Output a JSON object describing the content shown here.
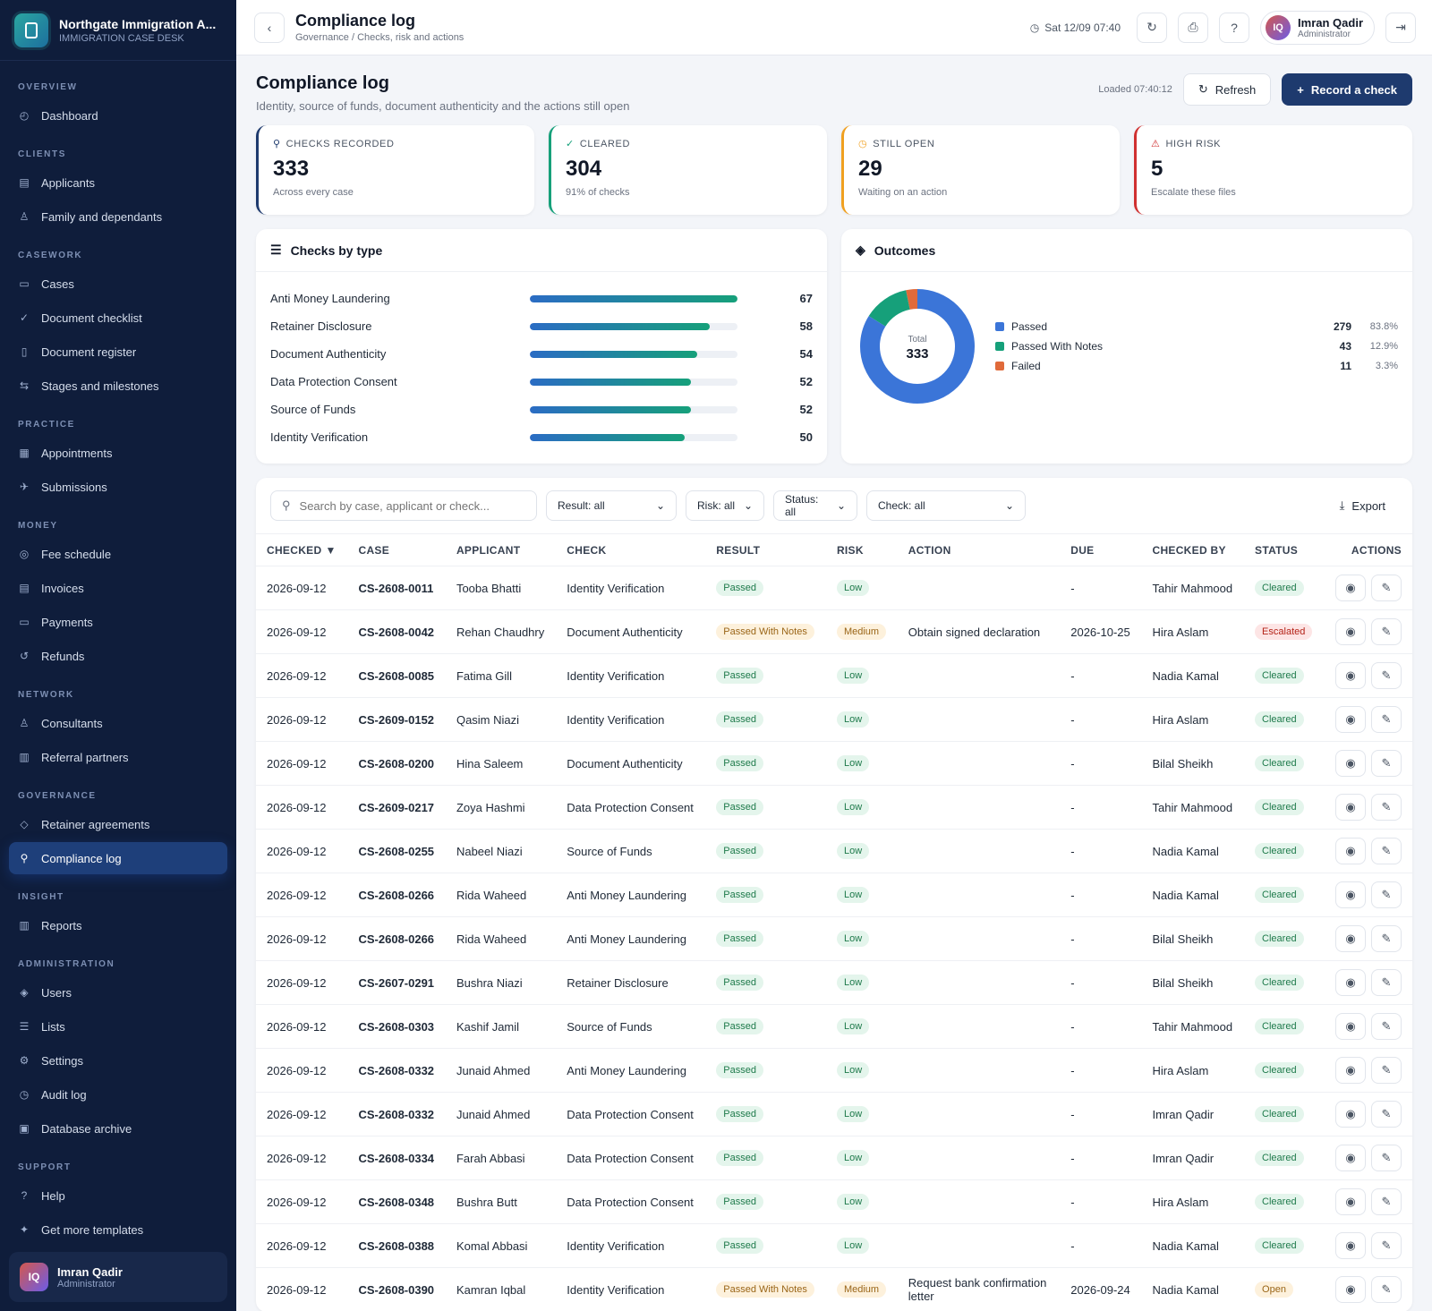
{
  "brand": {
    "title": "Northgate Immigration A...",
    "subtitle": "IMMIGRATION CASE DESK"
  },
  "nav": [
    {
      "section": "OVERVIEW",
      "items": [
        {
          "label": "Dashboard",
          "icon": "gauge-icon",
          "glyph": "◴"
        }
      ]
    },
    {
      "section": "CLIENTS",
      "items": [
        {
          "label": "Applicants",
          "icon": "id-card-icon",
          "glyph": "▤"
        },
        {
          "label": "Family and dependants",
          "icon": "user-icon",
          "glyph": "♙"
        }
      ]
    },
    {
      "section": "CASEWORK",
      "items": [
        {
          "label": "Cases",
          "icon": "briefcase-icon",
          "glyph": "▭"
        },
        {
          "label": "Document checklist",
          "icon": "check-icon",
          "glyph": "✓"
        },
        {
          "label": "Document register",
          "icon": "document-icon",
          "glyph": "▯"
        },
        {
          "label": "Stages and milestones",
          "icon": "milestone-icon",
          "glyph": "⇆"
        }
      ]
    },
    {
      "section": "PRACTICE",
      "items": [
        {
          "label": "Appointments",
          "icon": "calendar-icon",
          "glyph": "▦"
        },
        {
          "label": "Submissions",
          "icon": "plane-icon",
          "glyph": "✈"
        }
      ]
    },
    {
      "section": "MONEY",
      "items": [
        {
          "label": "Fee schedule",
          "icon": "coin-icon",
          "glyph": "◎"
        },
        {
          "label": "Invoices",
          "icon": "invoice-icon",
          "glyph": "▤"
        },
        {
          "label": "Payments",
          "icon": "card-icon",
          "glyph": "▭"
        },
        {
          "label": "Refunds",
          "icon": "refund-icon",
          "glyph": "↺"
        }
      ]
    },
    {
      "section": "NETWORK",
      "items": [
        {
          "label": "Consultants",
          "icon": "user-icon",
          "glyph": "♙"
        },
        {
          "label": "Referral partners",
          "icon": "building-icon",
          "glyph": "▥"
        }
      ]
    },
    {
      "section": "GOVERNANCE",
      "items": [
        {
          "label": "Retainer agreements",
          "icon": "tag-icon",
          "glyph": "◇"
        },
        {
          "label": "Compliance log",
          "icon": "key-icon",
          "glyph": "⚲",
          "active": true
        }
      ]
    },
    {
      "section": "INSIGHT",
      "items": [
        {
          "label": "Reports",
          "icon": "bar-chart-icon",
          "glyph": "▥"
        }
      ]
    },
    {
      "section": "ADMINISTRATION",
      "items": [
        {
          "label": "Users",
          "icon": "shield-icon",
          "glyph": "◈"
        },
        {
          "label": "Lists",
          "icon": "list-icon",
          "glyph": "☰"
        },
        {
          "label": "Settings",
          "icon": "gear-icon",
          "glyph": "⚙"
        },
        {
          "label": "Audit log",
          "icon": "history-icon",
          "glyph": "◷"
        },
        {
          "label": "Database archive",
          "icon": "archive-icon",
          "glyph": "▣"
        }
      ]
    },
    {
      "section": "SUPPORT",
      "items": [
        {
          "label": "Help",
          "icon": "help-icon",
          "glyph": "?"
        },
        {
          "label": "Get more templates",
          "icon": "sparkle-icon",
          "glyph": "✦"
        }
      ]
    }
  ],
  "user": {
    "initials": "IQ",
    "name": "Imran Qadir",
    "role": "Administrator"
  },
  "topbar": {
    "title": "Compliance log",
    "breadcrumb": "Governance / Checks, risk and actions",
    "datetime": "Sat 12/09 07:40"
  },
  "page": {
    "title": "Compliance log",
    "subtitle": "Identity, source of funds, document authenticity and the actions still open",
    "loaded": "Loaded 07:40:12",
    "refresh_label": "Refresh",
    "record_label": "Record a check"
  },
  "stats": [
    {
      "label": "CHECKS RECORDED",
      "value": "333",
      "note": "Across every case",
      "color": "#1e3a6e",
      "icon": "key-icon",
      "glyph": "⚲"
    },
    {
      "label": "CLEARED",
      "value": "304",
      "note": "91% of checks",
      "color": "#16a07a",
      "icon": "check-icon",
      "glyph": "✓"
    },
    {
      "label": "STILL OPEN",
      "value": "29",
      "note": "Waiting on an action",
      "color": "#f0a020",
      "icon": "clock-icon",
      "glyph": "◷"
    },
    {
      "label": "HIGH RISK",
      "value": "5",
      "note": "Escalate these files",
      "color": "#d03030",
      "icon": "warning-icon",
      "glyph": "⚠"
    }
  ],
  "checks_panel": {
    "title": "Checks by type"
  },
  "outcomes_panel": {
    "title": "Outcomes",
    "total_label": "Total",
    "total": "333"
  },
  "chart_data": [
    {
      "type": "bar",
      "title": "Checks by type",
      "categories": [
        "Anti Money Laundering",
        "Retainer Disclosure",
        "Document Authenticity",
        "Data Protection Consent",
        "Source of Funds",
        "Identity Verification"
      ],
      "values": [
        67,
        58,
        54,
        52,
        52,
        50
      ],
      "ylim": [
        0,
        67
      ]
    },
    {
      "type": "pie",
      "title": "Outcomes",
      "categories": [
        "Passed",
        "Passed With Notes",
        "Failed"
      ],
      "values": [
        279,
        43,
        11
      ],
      "percents": [
        "83.8%",
        "12.9%",
        "3.3%"
      ],
      "colors": [
        "#3b75d8",
        "#16a07a",
        "#e06a3a"
      ]
    }
  ],
  "filters": {
    "search_placeholder": "Search by case, applicant or check...",
    "result": "Result: all",
    "risk": "Risk: all",
    "status": "Status: all",
    "check": "Check: all",
    "export": "Export"
  },
  "table": {
    "columns": [
      "CHECKED",
      "CASE",
      "APPLICANT",
      "CHECK",
      "RESULT",
      "RISK",
      "ACTION",
      "DUE",
      "CHECKED BY",
      "STATUS",
      "ACTIONS"
    ],
    "sort_glyph": "▼",
    "rows": [
      [
        "2026-09-12",
        "CS-2608-0011",
        "Tooba Bhatti",
        "Identity Verification",
        "Passed",
        "Low",
        "",
        "-",
        "Tahir Mahmood",
        "Cleared"
      ],
      [
        "2026-09-12",
        "CS-2608-0042",
        "Rehan Chaudhry",
        "Document Authenticity",
        "Passed With Notes",
        "Medium",
        "Obtain signed declaration",
        "2026-10-25",
        "Hira Aslam",
        "Escalated"
      ],
      [
        "2026-09-12",
        "CS-2608-0085",
        "Fatima Gill",
        "Identity Verification",
        "Passed",
        "Low",
        "",
        "-",
        "Nadia Kamal",
        "Cleared"
      ],
      [
        "2026-09-12",
        "CS-2609-0152",
        "Qasim Niazi",
        "Identity Verification",
        "Passed",
        "Low",
        "",
        "-",
        "Hira Aslam",
        "Cleared"
      ],
      [
        "2026-09-12",
        "CS-2608-0200",
        "Hina Saleem",
        "Document Authenticity",
        "Passed",
        "Low",
        "",
        "-",
        "Bilal Sheikh",
        "Cleared"
      ],
      [
        "2026-09-12",
        "CS-2609-0217",
        "Zoya Hashmi",
        "Data Protection Consent",
        "Passed",
        "Low",
        "",
        "-",
        "Tahir Mahmood",
        "Cleared"
      ],
      [
        "2026-09-12",
        "CS-2608-0255",
        "Nabeel Niazi",
        "Source of Funds",
        "Passed",
        "Low",
        "",
        "-",
        "Nadia Kamal",
        "Cleared"
      ],
      [
        "2026-09-12",
        "CS-2608-0266",
        "Rida Waheed",
        "Anti Money Laundering",
        "Passed",
        "Low",
        "",
        "-",
        "Nadia Kamal",
        "Cleared"
      ],
      [
        "2026-09-12",
        "CS-2608-0266",
        "Rida Waheed",
        "Anti Money Laundering",
        "Passed",
        "Low",
        "",
        "-",
        "Bilal Sheikh",
        "Cleared"
      ],
      [
        "2026-09-12",
        "CS-2607-0291",
        "Bushra Niazi",
        "Retainer Disclosure",
        "Passed",
        "Low",
        "",
        "-",
        "Bilal Sheikh",
        "Cleared"
      ],
      [
        "2026-09-12",
        "CS-2608-0303",
        "Kashif Jamil",
        "Source of Funds",
        "Passed",
        "Low",
        "",
        "-",
        "Tahir Mahmood",
        "Cleared"
      ],
      [
        "2026-09-12",
        "CS-2608-0332",
        "Junaid Ahmed",
        "Anti Money Laundering",
        "Passed",
        "Low",
        "",
        "-",
        "Hira Aslam",
        "Cleared"
      ],
      [
        "2026-09-12",
        "CS-2608-0332",
        "Junaid Ahmed",
        "Data Protection Consent",
        "Passed",
        "Low",
        "",
        "-",
        "Imran Qadir",
        "Cleared"
      ],
      [
        "2026-09-12",
        "CS-2608-0334",
        "Farah Abbasi",
        "Data Protection Consent",
        "Passed",
        "Low",
        "",
        "-",
        "Imran Qadir",
        "Cleared"
      ],
      [
        "2026-09-12",
        "CS-2608-0348",
        "Bushra Butt",
        "Data Protection Consent",
        "Passed",
        "Low",
        "",
        "-",
        "Hira Aslam",
        "Cleared"
      ],
      [
        "2026-09-12",
        "CS-2608-0388",
        "Komal Abbasi",
        "Identity Verification",
        "Passed",
        "Low",
        "",
        "-",
        "Nadia Kamal",
        "Cleared"
      ],
      [
        "2026-09-12",
        "CS-2608-0390",
        "Kamran Iqbal",
        "Identity Verification",
        "Passed With Notes",
        "Medium",
        "Request bank confirmation letter",
        "2026-09-24",
        "Nadia Kamal",
        "Open"
      ]
    ]
  }
}
